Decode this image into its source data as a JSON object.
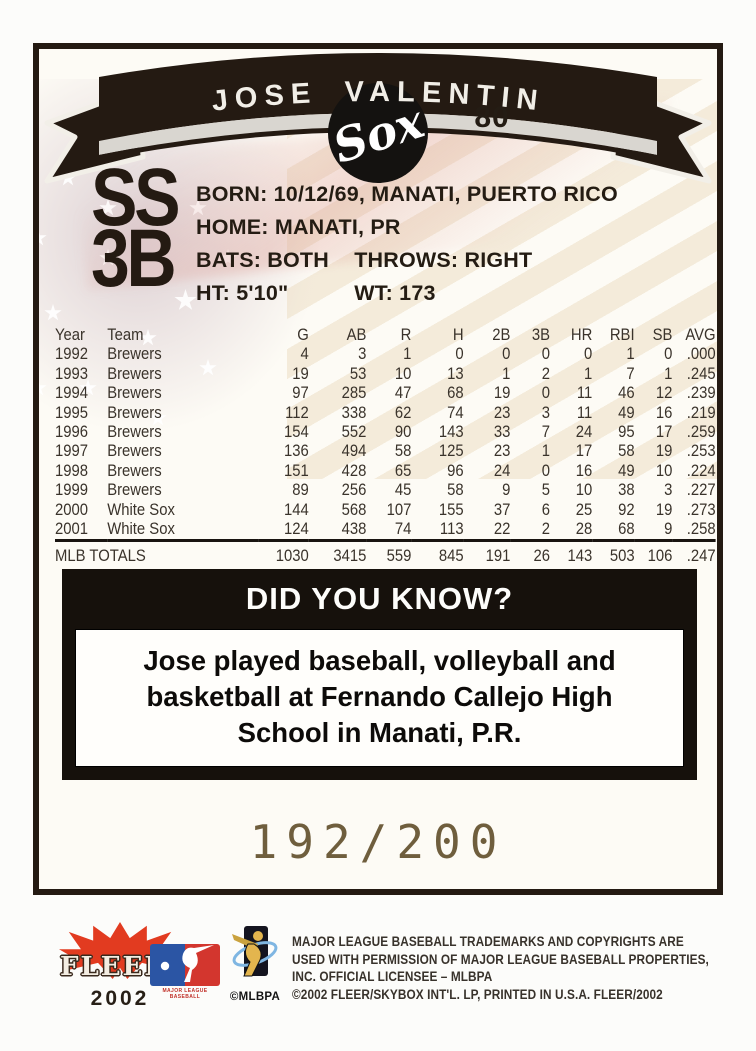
{
  "header": {
    "player_name": "JOSE VALENTIN",
    "card_number": "80",
    "team_logo_text": "Sox"
  },
  "positions": {
    "primary": "SS",
    "secondary": "3B"
  },
  "bio": {
    "born": "BORN: 10/12/69, MANATI, PUERTO RICO",
    "home": "HOME: MANATI, PR",
    "bats": "BATS: BOTH",
    "throws": "THROWS: RIGHT",
    "height": "HT: 5'10\"",
    "weight": "WT: 173"
  },
  "stats": {
    "columns": [
      "Year",
      "Team",
      "G",
      "AB",
      "R",
      "H",
      "2B",
      "3B",
      "HR",
      "RBI",
      "SB",
      "AVG"
    ],
    "rows": [
      [
        "1992",
        "Brewers",
        "4",
        "3",
        "1",
        "0",
        "0",
        "0",
        "0",
        "1",
        "0",
        ".000"
      ],
      [
        "1993",
        "Brewers",
        "19",
        "53",
        "10",
        "13",
        "1",
        "2",
        "1",
        "7",
        "1",
        ".245"
      ],
      [
        "1994",
        "Brewers",
        "97",
        "285",
        "47",
        "68",
        "19",
        "0",
        "11",
        "46",
        "12",
        ".239"
      ],
      [
        "1995",
        "Brewers",
        "112",
        "338",
        "62",
        "74",
        "23",
        "3",
        "11",
        "49",
        "16",
        ".219"
      ],
      [
        "1996",
        "Brewers",
        "154",
        "552",
        "90",
        "143",
        "33",
        "7",
        "24",
        "95",
        "17",
        ".259"
      ],
      [
        "1997",
        "Brewers",
        "136",
        "494",
        "58",
        "125",
        "23",
        "1",
        "17",
        "58",
        "19",
        ".253"
      ],
      [
        "1998",
        "Brewers",
        "151",
        "428",
        "65",
        "96",
        "24",
        "0",
        "16",
        "49",
        "10",
        ".224"
      ],
      [
        "1999",
        "Brewers",
        "89",
        "256",
        "45",
        "58",
        "9",
        "5",
        "10",
        "38",
        "3",
        ".227"
      ],
      [
        "2000",
        "White Sox",
        "144",
        "568",
        "107",
        "155",
        "37",
        "6",
        "25",
        "92",
        "19",
        ".273"
      ],
      [
        "2001",
        "White Sox",
        "124",
        "438",
        "74",
        "113",
        "22",
        "2",
        "28",
        "68",
        "9",
        ".258"
      ]
    ],
    "totals": {
      "label": "MLB TOTALS",
      "values": [
        "1030",
        "3415",
        "559",
        "845",
        "191",
        "26",
        "143",
        "503",
        "106",
        ".247"
      ]
    }
  },
  "fact": {
    "title": "DID YOU KNOW?",
    "lines": [
      "Jose played baseball, volleyball and",
      "basketball at Fernando Callejo High",
      "School in Manati, P.R."
    ]
  },
  "serial_number": "192/200",
  "footer": {
    "fleer_brand": "FLEER",
    "fleer_reg": "®",
    "fleer_year": "2002",
    "mlb_caption": "MAJOR LEAGUE BASEBALL",
    "mlbpa_caption": "©MLBPA",
    "copyright_lines": [
      "MAJOR LEAGUE BASEBALL TRADEMARKS AND COPYRIGHTS ARE",
      "USED WITH PERMISSION OF MAJOR LEAGUE BASEBALL PROPERTIES,",
      "INC. OFFICIAL LICENSEE – MLBPA",
      "©2002 FLEER/SKYBOX INT'L. LP, PRINTED IN U.S.A. FLEER/2002"
    ]
  },
  "colors": {
    "banner_brown": "#241a12",
    "fleer_red": "#e23b20",
    "mlb_blue": "#2b55a4",
    "mlb_red": "#d3362e",
    "serial_gold": "#6f5e3d"
  }
}
